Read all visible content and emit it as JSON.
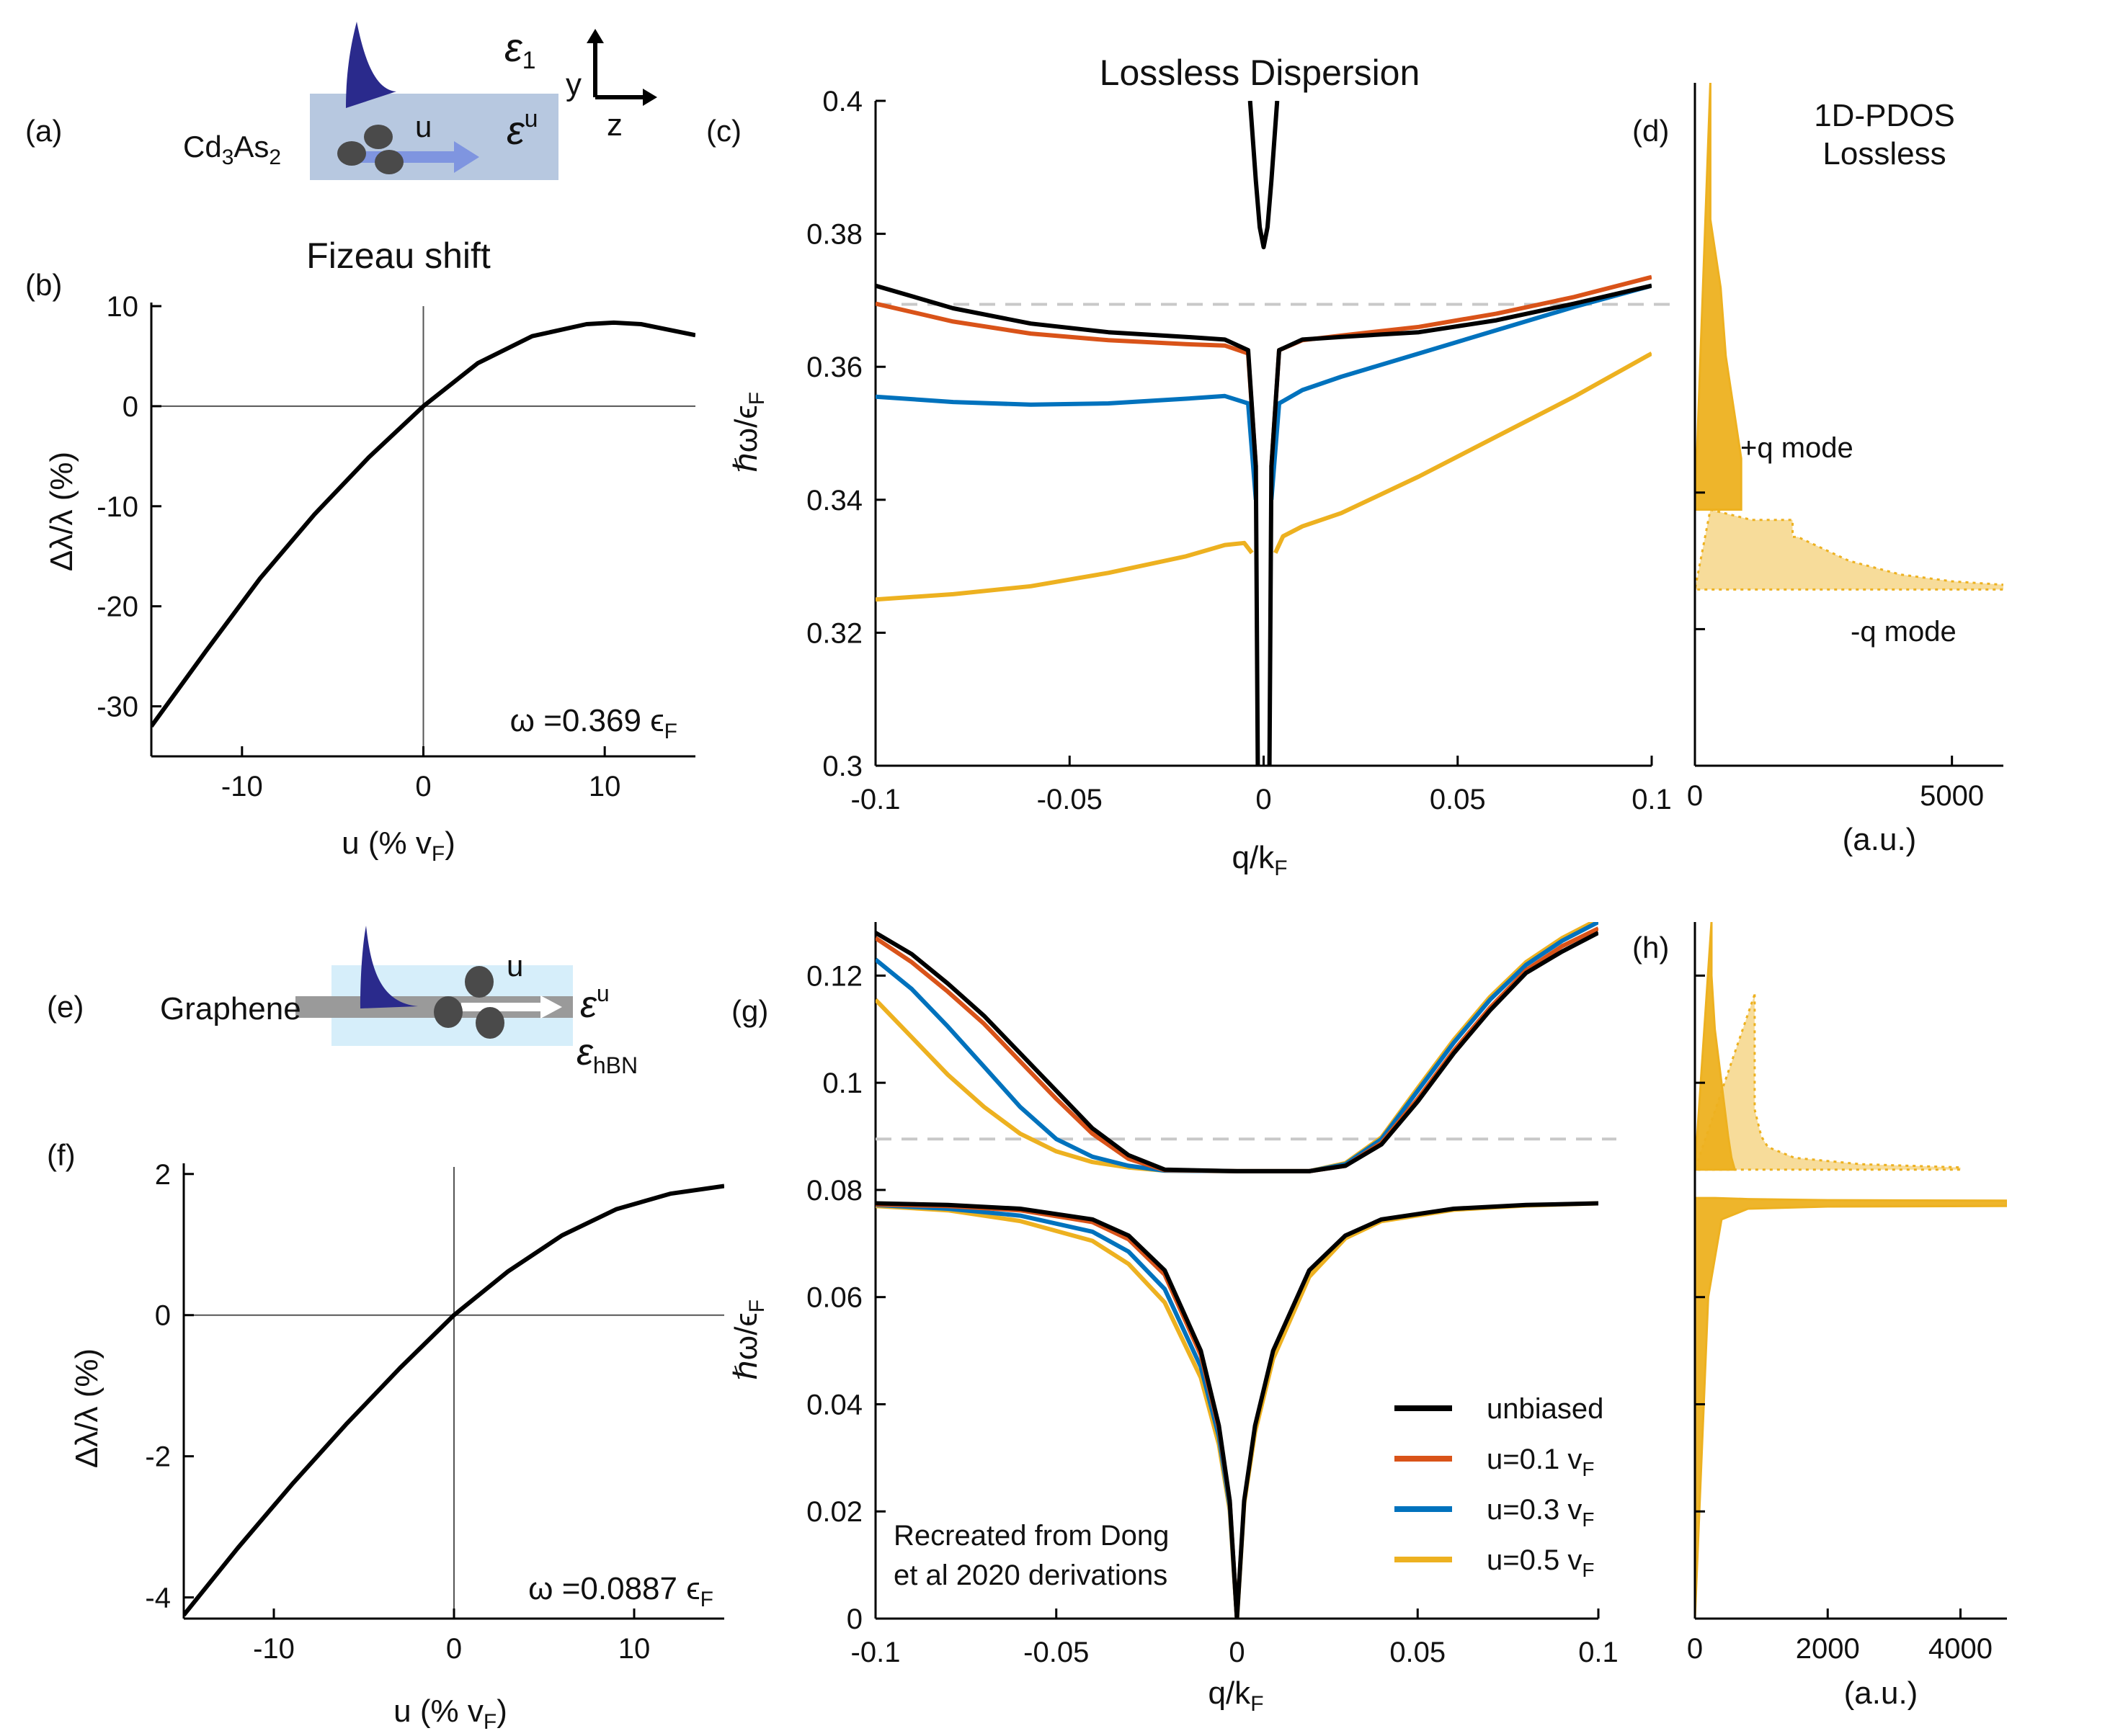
{
  "colors": {
    "unbiased": "#000000",
    "u01": "#D95319",
    "u03": "#0072BD",
    "u05": "#EDB120",
    "pdos_fill": "#EDB120",
    "dashed": "#c8c8c8",
    "schematic_box_cd": "#b7c8e0",
    "schematic_box_gr": "#d6eefa",
    "mode_blue": "#2a2a8c",
    "arrow_blue": "#7f95e0"
  },
  "schematics": {
    "top": {
      "tag": "(a)",
      "material": "Cd",
      "material_sub1": "3",
      "material_mid": "As",
      "material_sub2": "2",
      "eps_top": "ε",
      "eps_top_sub": "1",
      "eps_u": "ε",
      "eps_u_sup": "u",
      "u_label": "u",
      "axis_y": "y",
      "axis_z": "z"
    },
    "bottom": {
      "tag": "(e)",
      "material": "Graphene",
      "eps_u": "ε",
      "eps_u_sup": "u",
      "eps_bottom": "ε",
      "eps_bottom_sub": "hBN",
      "u_label": "u"
    }
  },
  "panel_tags": {
    "b": "(b)",
    "c": "(c)",
    "d": "(d)",
    "f": "(f)",
    "g": "(g)",
    "h": "(h)"
  },
  "chart_data": [
    {
      "id": "b",
      "type": "line",
      "title": "Fizeau shift",
      "xlabel": "u (% v",
      "xlabel_sub": "F",
      "xlabel_end": ")",
      "ylabel": "Δλ/λ (%)",
      "xlim": [
        -15,
        15
      ],
      "ylim": [
        -35,
        10
      ],
      "xticks": [
        -10,
        0,
        10
      ],
      "yticks": [
        10,
        0,
        -10,
        -20,
        -30
      ],
      "annotation": "ω =0.369 ϵ",
      "annotation_sub": "F",
      "series": [
        {
          "x": [
            -15,
            -12,
            -9,
            -6,
            -3,
            0,
            3,
            6,
            9,
            10.5,
            12,
            15
          ],
          "y": [
            -32,
            -24.5,
            -17.2,
            -10.8,
            -5.1,
            0,
            4.3,
            7.0,
            8.2,
            8.35,
            8.2,
            7.1
          ]
        }
      ]
    },
    {
      "id": "c",
      "type": "line",
      "title": "Lossless Dispersion",
      "xlabel": "q/k",
      "xlabel_sub": "F",
      "ylabel": "ℏω/ϵ",
      "ylabel_sub": "F",
      "xlim": [
        -0.1,
        0.1
      ],
      "ylim": [
        0.3,
        0.4
      ],
      "xticks": [
        -0.1,
        -0.05,
        0,
        0.05,
        0.1
      ],
      "yticks": [
        0.4,
        0.38,
        0.36,
        0.34,
        0.32,
        0.3
      ],
      "reference_line": 0.3694,
      "series": [
        {
          "name": "unbiased",
          "x": [
            -0.1,
            -0.08,
            -0.06,
            -0.04,
            -0.02,
            -0.01,
            -0.004,
            -0.002,
            -0.0015
          ],
          "y": [
            0.3722,
            0.3688,
            0.3665,
            0.3652,
            0.3645,
            0.3641,
            0.3625,
            0.345,
            0.3
          ]
        },
        {
          "name": "unbiased",
          "x": [
            0.0015,
            0.002,
            0.004,
            0.01,
            0.02,
            0.04,
            0.06,
            0.08,
            0.1
          ],
          "y": [
            0.3,
            0.345,
            0.3625,
            0.3641,
            0.3645,
            0.3652,
            0.367,
            0.3695,
            0.3722
          ]
        },
        {
          "name": "u=0.1 v_F",
          "x": [
            -0.1,
            -0.08,
            -0.06,
            -0.04,
            -0.02,
            -0.01,
            -0.004,
            -0.002
          ],
          "y": [
            0.3695,
            0.3668,
            0.365,
            0.364,
            0.3634,
            0.3632,
            0.362,
            0.345
          ]
        },
        {
          "name": "u=0.1 v_F",
          "x": [
            0.002,
            0.004,
            0.01,
            0.02,
            0.04,
            0.06,
            0.08,
            0.1
          ],
          "y": [
            0.345,
            0.3625,
            0.364,
            0.3647,
            0.366,
            0.368,
            0.3705,
            0.3735
          ]
        },
        {
          "name": "u=0.3 v_F",
          "x": [
            -0.1,
            -0.08,
            -0.06,
            -0.04,
            -0.02,
            -0.01,
            -0.004,
            -0.002
          ],
          "y": [
            0.3555,
            0.3547,
            0.3543,
            0.3545,
            0.3552,
            0.3556,
            0.3545,
            0.34
          ]
        },
        {
          "name": "u=0.3 v_F",
          "x": [
            0.002,
            0.004,
            0.01,
            0.02,
            0.04,
            0.06,
            0.08,
            0.1
          ],
          "y": [
            0.34,
            0.3545,
            0.3565,
            0.3585,
            0.362,
            0.3655,
            0.369,
            0.3722
          ]
        },
        {
          "name": "u=0.5 v_F",
          "x": [
            -0.1,
            -0.08,
            -0.06,
            -0.04,
            -0.02,
            -0.01,
            -0.005,
            -0.003
          ],
          "y": [
            0.325,
            0.3258,
            0.327,
            0.329,
            0.3315,
            0.3332,
            0.3335,
            0.332
          ]
        },
        {
          "name": "u=0.5 v_F",
          "x": [
            0.003,
            0.005,
            0.01,
            0.02,
            0.04,
            0.06,
            0.08,
            0.1
          ],
          "y": [
            0.332,
            0.3345,
            0.336,
            0.338,
            0.3435,
            0.3495,
            0.3555,
            0.362
          ]
        },
        {
          "name": "unbiased",
          "x": [
            -0.0035,
            -0.002,
            -0.001,
            0,
            0.001,
            0.002,
            0.0035
          ],
          "y": [
            0.4,
            0.388,
            0.381,
            0.378,
            0.381,
            0.388,
            0.4
          ]
        }
      ]
    },
    {
      "id": "d",
      "type": "area",
      "title": "1D-PDOS",
      "title2": "Lossless",
      "xlabel": "(a.u.)",
      "xlim": [
        0,
        6000
      ],
      "ylim": [
        0.3,
        0.4
      ],
      "xticks": [
        0,
        5000
      ],
      "annotations": [
        "+q mode",
        "-q mode"
      ],
      "series": [
        {
          "name": "+q mode",
          "x": [
            300,
            300,
            500,
            600,
            700,
            800,
            900,
            900,
            0
          ],
          "y": [
            0.4,
            0.38,
            0.37,
            0.36,
            0.355,
            0.35,
            0.345,
            0.3375,
            0.3375
          ]
        },
        {
          "name": "-q mode",
          "x": [
            300,
            1100,
            1900,
            1900,
            2000,
            3000,
            4000,
            5000,
            6000,
            6000,
            0
          ],
          "y": [
            0.3375,
            0.336,
            0.336,
            0.3335,
            0.3335,
            0.33,
            0.328,
            0.327,
            0.3265,
            0.3258,
            0.3258
          ]
        }
      ]
    },
    {
      "id": "f",
      "type": "line",
      "xlabel": "u (% v",
      "xlabel_sub": "F",
      "xlabel_end": ")",
      "ylabel": "Δλ/λ (%)",
      "xlim": [
        -15,
        15
      ],
      "ylim": [
        -4.3,
        2.1
      ],
      "xticks": [
        -10,
        0,
        10
      ],
      "yticks": [
        2,
        0,
        -2,
        -4
      ],
      "annotation": "ω =0.0887 ϵ",
      "annotation_sub": "F",
      "series": [
        {
          "x": [
            -15,
            -12,
            -9,
            -6,
            -3,
            0,
            3,
            6,
            9,
            12,
            15
          ],
          "y": [
            -4.25,
            -3.3,
            -2.4,
            -1.55,
            -0.75,
            0,
            0.62,
            1.13,
            1.5,
            1.72,
            1.83
          ]
        }
      ]
    },
    {
      "id": "g",
      "type": "line",
      "xlabel": "q/k",
      "xlabel_sub": "F",
      "ylabel": "ℏω/ϵ",
      "ylabel_sub": "F",
      "xlim": [
        -0.1,
        0.1
      ],
      "ylim": [
        0,
        0.13
      ],
      "xticks": [
        -0.1,
        -0.05,
        0,
        0.05,
        0.1
      ],
      "yticks": [
        0.12,
        0.1,
        0.08,
        0.06,
        0.04,
        0.02,
        0
      ],
      "reference_line": 0.0895,
      "annotation": [
        "Recreated from Dong",
        "et al 2020 derivations"
      ],
      "legend": [
        "unbiased",
        "u=0.1 v",
        "u=0.3 v",
        "u=0.5 v"
      ],
      "legend_sub": "F",
      "legend_position": "bottom-right",
      "series": [
        {
          "name": "unbiased",
          "x": [
            -0.1,
            -0.09,
            -0.08,
            -0.07,
            -0.06,
            -0.05,
            -0.04,
            -0.03,
            -0.02,
            0,
            0.02,
            0.03,
            0.04,
            0.05,
            0.06,
            0.07,
            0.08,
            0.09,
            0.1
          ],
          "y": [
            0.128,
            0.124,
            0.1185,
            0.1125,
            0.1055,
            0.0985,
            0.0915,
            0.0865,
            0.0838,
            0.0835,
            0.0835,
            0.0845,
            0.0885,
            0.0965,
            0.1055,
            0.1135,
            0.1205,
            0.1245,
            0.128
          ]
        },
        {
          "name": "u=0.1 v_F",
          "x": [
            -0.1,
            -0.09,
            -0.08,
            -0.07,
            -0.06,
            -0.05,
            -0.04,
            -0.03,
            -0.02,
            0,
            0.02,
            0.03,
            0.04,
            0.05,
            0.06,
            0.07,
            0.08,
            0.09,
            0.1
          ],
          "y": [
            0.127,
            0.1225,
            0.117,
            0.111,
            0.104,
            0.097,
            0.0905,
            0.0858,
            0.0837,
            0.0835,
            0.0835,
            0.0845,
            0.0888,
            0.097,
            0.106,
            0.114,
            0.121,
            0.1255,
            0.1288
          ]
        },
        {
          "name": "u=0.3 v_F",
          "x": [
            -0.1,
            -0.09,
            -0.08,
            -0.07,
            -0.06,
            -0.05,
            -0.04,
            -0.03,
            -0.02,
            0,
            0.02,
            0.03,
            0.04,
            0.05,
            0.06,
            0.07,
            0.08,
            0.09,
            0.1
          ],
          "y": [
            0.123,
            0.1175,
            0.1105,
            0.103,
            0.0955,
            0.0895,
            0.0862,
            0.0845,
            0.0836,
            0.0835,
            0.0835,
            0.0848,
            0.0895,
            0.0985,
            0.1075,
            0.1155,
            0.122,
            0.1265,
            0.13
          ]
        },
        {
          "name": "u=0.5 v_F",
          "x": [
            -0.1,
            -0.09,
            -0.08,
            -0.07,
            -0.06,
            -0.05,
            -0.04,
            -0.03,
            -0.02,
            0,
            0.02,
            0.03,
            0.04,
            0.05,
            0.06,
            0.07,
            0.08,
            0.09,
            0.1
          ],
          "y": [
            0.1155,
            0.1085,
            0.1015,
            0.0955,
            0.0905,
            0.0872,
            0.0852,
            0.0842,
            0.0836,
            0.0835,
            0.0835,
            0.085,
            0.0898,
            0.099,
            0.108,
            0.116,
            0.1225,
            0.127,
            0.1305
          ]
        },
        {
          "name": "unbiased",
          "x": [
            -0.1,
            -0.08,
            -0.06,
            -0.04,
            -0.03,
            -0.02,
            -0.01,
            -0.005,
            -0.002,
            0
          ],
          "y": [
            0.0775,
            0.0772,
            0.0765,
            0.0745,
            0.0715,
            0.065,
            0.05,
            0.036,
            0.022,
            0
          ]
        },
        {
          "name": "unbiased",
          "x": [
            0,
            0.002,
            0.005,
            0.01,
            0.02,
            0.03,
            0.04,
            0.06,
            0.08,
            0.1
          ],
          "y": [
            0,
            0.022,
            0.036,
            0.05,
            0.065,
            0.0715,
            0.0745,
            0.0765,
            0.0772,
            0.0775
          ]
        },
        {
          "name": "u=0.1 v_F",
          "x": [
            -0.1,
            -0.08,
            -0.06,
            -0.04,
            -0.03,
            -0.02,
            -0.01,
            -0.005,
            -0.002,
            0
          ],
          "y": [
            0.0773,
            0.077,
            0.0762,
            0.074,
            0.0708,
            0.0642,
            0.0492,
            0.0355,
            0.0218,
            0
          ]
        },
        {
          "name": "u=0.3 v_F",
          "x": [
            -0.1,
            -0.08,
            -0.06,
            -0.04,
            -0.03,
            -0.02,
            -0.01,
            -0.005,
            -0.002,
            0
          ],
          "y": [
            0.0772,
            0.0765,
            0.0752,
            0.0722,
            0.0685,
            0.0615,
            0.047,
            0.034,
            0.021,
            0
          ]
        },
        {
          "name": "u=0.5 v_F",
          "x": [
            -0.1,
            -0.08,
            -0.06,
            -0.04,
            -0.03,
            -0.02,
            -0.01,
            -0.005,
            -0.002,
            0
          ],
          "y": [
            0.077,
            0.0762,
            0.0742,
            0.0705,
            0.0662,
            0.059,
            0.045,
            0.0325,
            0.0202,
            0
          ]
        },
        {
          "name": "u=0.5 v_F",
          "x": [
            0,
            0.002,
            0.005,
            0.01,
            0.02,
            0.03,
            0.04,
            0.06,
            0.08,
            0.1
          ],
          "y": [
            0,
            0.0215,
            0.0348,
            0.0485,
            0.0638,
            0.071,
            0.0742,
            0.0763,
            0.0771,
            0.0775
          ]
        }
      ]
    },
    {
      "id": "h",
      "type": "area",
      "xlabel": "(a.u.)",
      "xlim": [
        0,
        4700
      ],
      "ylim": [
        0,
        0.13
      ],
      "xticks": [
        0,
        2000,
        4000
      ],
      "series": [
        {
          "name": "upper-solid",
          "x": [
            250,
            250,
            300,
            400,
            500,
            550,
            600,
            0
          ],
          "y": [
            0.13,
            0.12,
            0.11,
            0.1,
            0.09,
            0.086,
            0.0838,
            0.0838
          ]
        },
        {
          "name": "upper-light",
          "x": [
            900,
            900,
            1000,
            1100,
            1500,
            2500,
            4000,
            4000,
            0
          ],
          "y": [
            0.1165,
            0.095,
            0.09,
            0.088,
            0.086,
            0.0848,
            0.0842,
            0.0838,
            0.0838
          ]
        },
        {
          "name": "lower",
          "x": [
            0,
            300,
            800,
            2000,
            4700,
            4700,
            2000,
            800,
            400,
            200,
            100,
            0
          ],
          "y": [
            0.0785,
            0.0785,
            0.0783,
            0.0781,
            0.078,
            0.077,
            0.0769,
            0.0765,
            0.0745,
            0.06,
            0.03,
            0
          ]
        }
      ]
    }
  ]
}
